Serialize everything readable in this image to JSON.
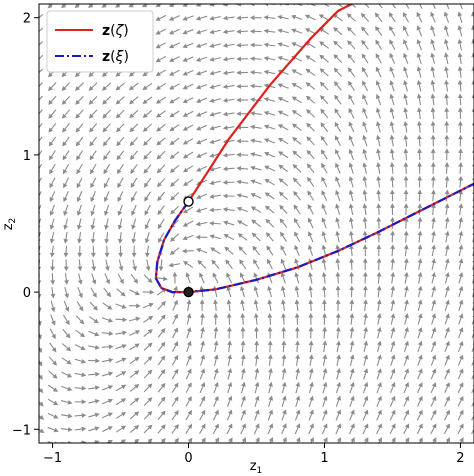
{
  "chart_data": {
    "type": "line",
    "title": "",
    "xlabel": "z1",
    "ylabel": "z2",
    "xlim": [
      -1.1,
      2.1
    ],
    "ylim": [
      -1.1,
      2.1
    ],
    "xticks": [
      -1,
      0,
      1,
      2
    ],
    "yticks": [
      -1,
      0,
      1,
      2
    ],
    "xtick_labels": [
      "−1",
      "0",
      "1",
      "2"
    ],
    "ytick_labels": [
      "−1",
      "0",
      "1",
      "2"
    ],
    "grid": false,
    "legend_position": "top-left",
    "background_field": {
      "type": "quiver",
      "color": "#8c8c8c",
      "x_range": [
        -1.1,
        2.1
      ],
      "y_range": [
        -1.1,
        2.1
      ],
      "spacing": 0.1
    },
    "series": [
      {
        "name": "z(ζ)",
        "name_symbol": "ζ",
        "color": "#e0201b",
        "style": "solid",
        "points": [
          [
            0.0,
            0.66
          ],
          [
            0.3,
            1.12
          ],
          [
            0.6,
            1.51
          ],
          [
            0.9,
            1.85
          ],
          [
            1.1,
            2.05
          ],
          [
            1.2,
            2.1
          ]
        ]
      },
      {
        "name": "z(ξ)",
        "name_symbol": "ξ",
        "color": "#1a1ac8",
        "overlay_color": "#e0201b",
        "style": "dashdot",
        "points": [
          [
            0.0,
            0.66
          ],
          [
            -0.1,
            0.52
          ],
          [
            -0.18,
            0.38
          ],
          [
            -0.23,
            0.22
          ],
          [
            -0.24,
            0.1
          ],
          [
            -0.2,
            0.03
          ],
          [
            -0.12,
            0.0
          ],
          [
            0.0,
            0.0
          ],
          [
            0.2,
            0.02
          ],
          [
            0.5,
            0.09
          ],
          [
            0.8,
            0.18
          ],
          [
            1.1,
            0.3
          ],
          [
            1.4,
            0.44
          ],
          [
            1.7,
            0.59
          ],
          [
            2.0,
            0.74
          ],
          [
            2.1,
            0.79
          ]
        ]
      }
    ],
    "markers": [
      {
        "name": "open-point",
        "x": 0.0,
        "y": 0.66,
        "fill": "#ffffff",
        "stroke": "#000000"
      },
      {
        "name": "filled-point",
        "x": 0.0,
        "y": 0.0,
        "fill": "#222222",
        "stroke": "#000000"
      }
    ]
  }
}
